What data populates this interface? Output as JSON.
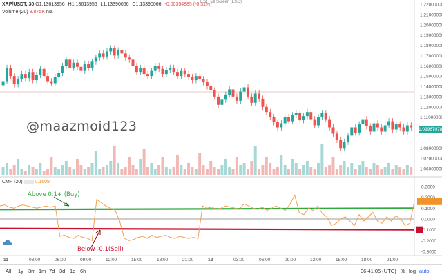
{
  "header": {
    "symbol": "XRP/USDT, 30",
    "open": "O1.13613956",
    "high": "H1.13613956",
    "low": "L1.13390066",
    "close": "C1.13390066",
    "change": "-0.00354885 (-0.31%)",
    "exit_fullscreen": "Exit Full Screen (ESC)"
  },
  "volume": {
    "label": "Volume (20)",
    "value": "8.875K",
    "extra": "n/a"
  },
  "cmf": {
    "label": "CMF (20)",
    "value": "0.1609"
  },
  "watermark": "@maazmoid123",
  "annotations": {
    "above": "Above 0.1+ (Buy)",
    "below": "Below -0.1(Sell)"
  },
  "price_axis": [
    "1.22000000",
    "1.21000000",
    "1.20000000",
    "1.19000000",
    "1.18000000",
    "1.17000000",
    "1.16000000",
    "1.15000000",
    "1.14000000",
    "1.13000000",
    "1.12000000",
    "1.11000000",
    "1.10000000",
    "1.09967078",
    "1.08000000",
    "1.07000000",
    "1.06000000"
  ],
  "current_price": "1.09967078",
  "cmf_axis": [
    "0.3000",
    "0.2000",
    "0.1000",
    "0.0000",
    "-0.1000",
    "-0.2000",
    "-0.3000"
  ],
  "time_axis": [
    "11",
    "03:00",
    "06:00",
    "09:00",
    "12:00",
    "15:00",
    "18:00",
    "21:00",
    "12",
    "03:00",
    "06:00",
    "09:00",
    "12:00",
    "15:00",
    "18:00",
    "21:00"
  ],
  "bottombar": {
    "timeframes": [
      "All",
      "1y",
      "3m",
      "1m",
      "7d",
      "3d",
      "1d",
      "6h"
    ],
    "time": "06:41:05 (UTC)",
    "percent": "%",
    "log": "log",
    "auto": "auto"
  },
  "colors": {
    "up": "#26a69a",
    "down": "#ef5350",
    "up_vol": "#a8d8d5",
    "down_vol": "#f2b8b6",
    "cmf_line": "#f0a050",
    "buy_line": "#2eaa3e",
    "sell_line": "#c8102e",
    "zero_line": "#b0b0b0"
  },
  "chart_data": {
    "type": "candlestick",
    "candles_close": [
      1.145,
      1.158,
      1.15,
      1.142,
      1.147,
      1.152,
      1.148,
      1.154,
      1.146,
      1.151,
      1.157,
      1.15,
      1.145,
      1.143,
      1.149,
      1.153,
      1.16,
      1.166,
      1.158,
      1.163,
      1.159,
      1.155,
      1.162,
      1.158,
      1.164,
      1.168,
      1.172,
      1.169,
      1.174,
      1.177,
      1.17,
      1.175,
      1.172,
      1.168,
      1.166,
      1.16,
      1.154,
      1.158,
      1.152,
      1.15,
      1.155,
      1.16,
      1.157,
      1.152,
      1.156,
      1.158,
      1.154,
      1.15,
      1.155,
      1.152,
      1.149,
      1.146,
      1.15,
      1.147,
      1.144,
      1.14,
      1.136,
      1.13,
      1.122,
      1.127,
      1.132,
      1.137,
      1.13,
      1.126,
      1.135,
      1.139,
      1.13,
      1.124,
      1.133,
      1.128,
      1.12,
      1.115,
      1.11,
      1.105,
      1.1,
      1.104,
      1.11,
      1.106,
      1.112,
      1.114,
      1.107,
      1.111,
      1.115,
      1.108,
      1.102,
      1.11,
      1.114,
      1.108,
      1.1,
      1.094,
      1.088,
      1.08,
      1.086,
      1.092,
      1.1,
      1.095,
      1.103,
      1.108,
      1.101,
      1.096,
      1.104,
      1.1,
      1.096,
      1.102,
      1.106,
      1.098,
      1.103,
      1.1,
      1.096,
      1.102,
      1.1
    ],
    "cmf_values": [
      0.12,
      0.13,
      0.11,
      0.1,
      0.12,
      0.13,
      0.12,
      0.11,
      0.1,
      0.11,
      0.12,
      0.11,
      0.12,
      -0.16,
      -0.15,
      -0.17,
      -0.18,
      -0.15,
      -0.17,
      -0.18,
      -0.2,
      0.18,
      0.15,
      0.12,
      0.1,
      0.08,
      -0.02,
      -0.18,
      -0.2,
      -0.19,
      -0.17,
      -0.16,
      -0.18,
      -0.15,
      -0.17,
      -0.16,
      -0.15,
      -0.17,
      -0.18,
      -0.16,
      -0.17,
      -0.18,
      -0.17,
      -0.18,
      0.12,
      0.1,
      0.11,
      0.09,
      0.1,
      0.12,
      0.11,
      0.1,
      0.09,
      0.14,
      0.12,
      0.1,
      0.09,
      0.11,
      0.08,
      0.1,
      0.12,
      0.1,
      0.08,
      0.14,
      0.22,
      0.06,
      0.04,
      0.1,
      0.08,
      0.12,
      0.05,
      0.02,
      -0.06,
      -0.04,
      0.0,
      0.02,
      -0.02,
      -0.06,
      0.04,
      -0.02,
      0.02,
      0.06,
      -0.02,
      -0.04,
      0.02,
      -0.02,
      0.03,
      0.0,
      -0.06,
      -0.04,
      0.16
    ]
  }
}
